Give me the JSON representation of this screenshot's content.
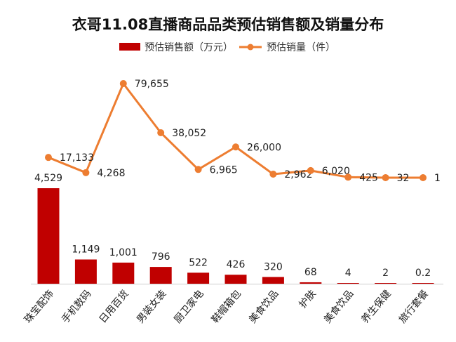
{
  "chart_data": {
    "type": "bar+line",
    "title": "衣哥11.08直播商品品类预估销售额及销量分布",
    "categories": [
      "珠宝配饰",
      "手机数码",
      "日用百货",
      "男装女装",
      "厨卫家电",
      "鞋帽箱包",
      "美食饮品",
      "护肤",
      "美食饮品",
      "养生保健",
      "旅行套餐"
    ],
    "series": [
      {
        "name": "预估销售额（万元）",
        "type": "bar",
        "color": "#C00000",
        "values": [
          4529,
          1149,
          1001,
          796,
          522,
          426,
          320,
          68,
          4,
          2,
          0.2
        ],
        "labels": [
          "4,529",
          "1,149",
          "1,001",
          "796",
          "522",
          "426",
          "320",
          "68",
          "4",
          "2",
          "0.2"
        ]
      },
      {
        "name": "预估销量（件）",
        "type": "line",
        "color": "#ED7D31",
        "values": [
          17133,
          4268,
          79655,
          38052,
          6965,
          26000,
          2962,
          6020,
          425,
          32,
          1
        ],
        "labels": [
          "17,133",
          "4,268",
          "79,655",
          "38,052",
          "6,965",
          "26,000",
          "2,962",
          "6,020",
          "425",
          "32",
          "1"
        ]
      }
    ],
    "legend_position": "top-center",
    "grid": false
  }
}
